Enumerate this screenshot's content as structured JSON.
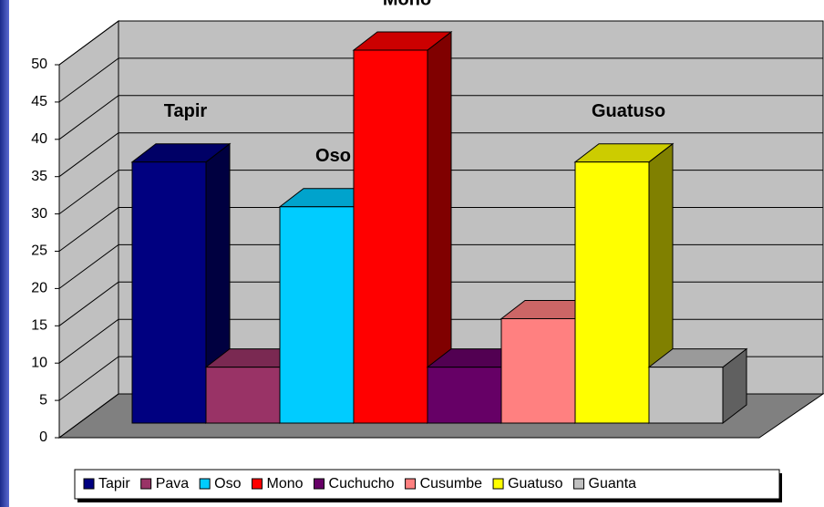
{
  "chart_data": {
    "type": "bar3d",
    "series": [
      {
        "name": "Tapir",
        "color": "#000080",
        "values": [
          35
        ]
      },
      {
        "name": "Pava",
        "color": "#993366",
        "values": [
          7.5
        ]
      },
      {
        "name": "Oso",
        "color": "#00ccff",
        "values": [
          29
        ]
      },
      {
        "name": "Mono",
        "color": "#ff0000",
        "values": [
          50
        ]
      },
      {
        "name": "Cuchucho",
        "color": "#660066",
        "values": [
          7.5
        ]
      },
      {
        "name": "Cusumbe",
        "color": "#ff8080",
        "values": [
          14
        ]
      },
      {
        "name": "Guatuso",
        "color": "#ffff00",
        "values": [
          35
        ]
      },
      {
        "name": "Guanta",
        "color": "#c0c0c0",
        "values": [
          7.5
        ]
      }
    ],
    "labeled_series": [
      0,
      2,
      3,
      6
    ],
    "ylim": [
      0,
      50
    ],
    "yticks": [
      0,
      5,
      10,
      15,
      20,
      25,
      30,
      35,
      40,
      45,
      50
    ],
    "grid": true
  }
}
